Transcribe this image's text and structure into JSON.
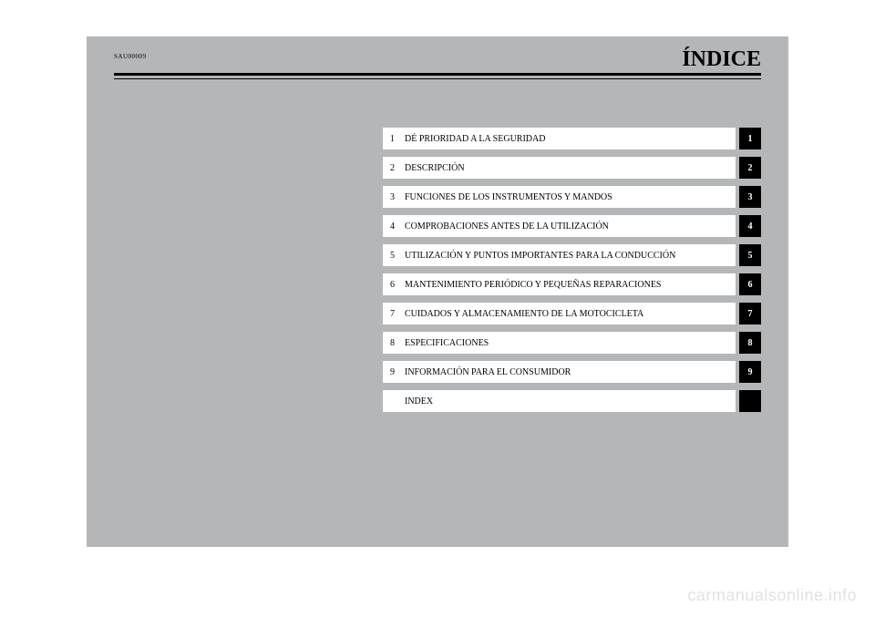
{
  "header": {
    "code": "SAU00009",
    "title": "ÍNDICE"
  },
  "toc": [
    {
      "num": "1",
      "label": "DÉ PRIORIDAD A LA SEGURIDAD",
      "tab": "1"
    },
    {
      "num": "2",
      "label": "DESCRIPCIÓN",
      "tab": "2"
    },
    {
      "num": "3",
      "label": "FUNCIONES DE LOS INSTRUMENTOS Y MANDOS",
      "tab": "3"
    },
    {
      "num": "4",
      "label": "COMPROBACIONES ANTES DE LA UTILIZACIÓN",
      "tab": "4"
    },
    {
      "num": "5",
      "label": "UTILIZACIÓN Y PUNTOS IMPORTANTES PARA LA CONDUCCIÓN",
      "tab": "5"
    },
    {
      "num": "6",
      "label": "MANTENIMIENTO PERIÓDICO Y PEQUEÑAS REPARACIONES",
      "tab": "6"
    },
    {
      "num": "7",
      "label": "CUIDADOS Y ALMACENAMIENTO DE LA MOTOCICLETA",
      "tab": "7"
    },
    {
      "num": "8",
      "label": "ESPECIFICACIONES",
      "tab": "8"
    },
    {
      "num": "9",
      "label": "INFORMACIÓN PARA EL CONSUMIDOR",
      "tab": "9"
    },
    {
      "num": "",
      "label": "INDEX",
      "tab": ""
    }
  ],
  "colors": {
    "page_bg": "#b5b6b8",
    "row_bg": "#ffffff",
    "tab_bg": "#000000",
    "tab_text": "#ffffff",
    "text": "#000000",
    "watermark": "#e2e2e2"
  },
  "watermark": "carmanualsonline.info"
}
